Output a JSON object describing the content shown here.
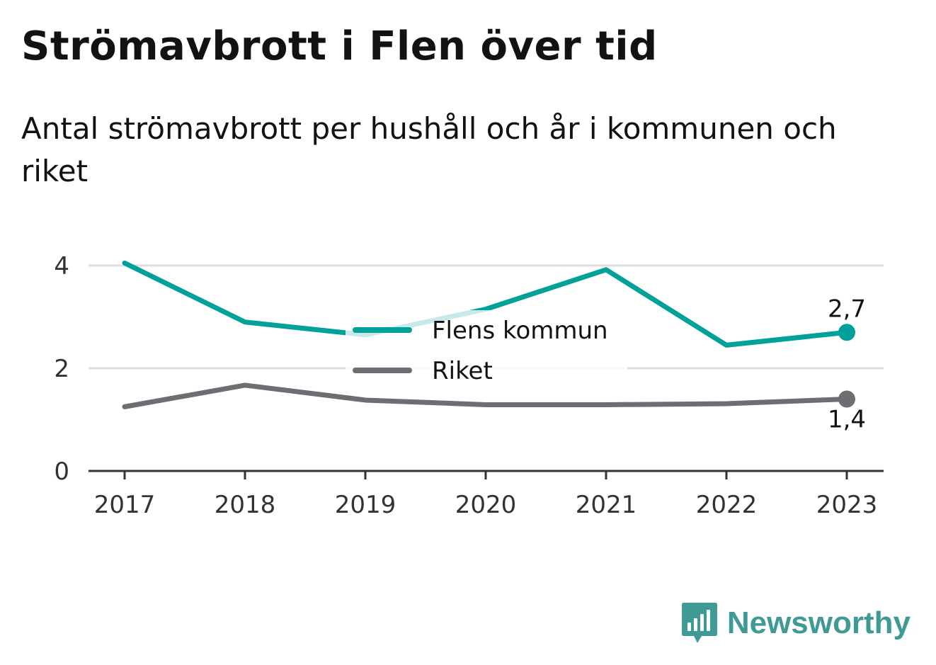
{
  "header": {
    "title": "Strömavbrott i Flen över tid",
    "subtitle": "Antal strömavbrott per hushåll och år i kommunen och riket"
  },
  "brand": {
    "name": "Newsworthy",
    "icon": "bar-chart-speech-bubble-icon",
    "color": "#3f9a95"
  },
  "chart_data": {
    "type": "line",
    "categories": [
      "2017",
      "2018",
      "2019",
      "2020",
      "2021",
      "2022",
      "2023"
    ],
    "series": [
      {
        "name": "Flens kommun",
        "color": "#00a09b",
        "values": [
          4.05,
          2.9,
          2.65,
          3.15,
          3.92,
          2.45,
          2.7
        ],
        "end_label": "2,7"
      },
      {
        "name": "Riket",
        "color": "#6e6d73",
        "values": [
          1.25,
          1.67,
          1.38,
          1.29,
          1.29,
          1.31,
          1.4
        ],
        "end_label": "1,4"
      }
    ],
    "y_ticks": [
      "0",
      "2",
      "4"
    ],
    "ylim": [
      0,
      4.1
    ],
    "grid": true,
    "legend_position": "center"
  }
}
